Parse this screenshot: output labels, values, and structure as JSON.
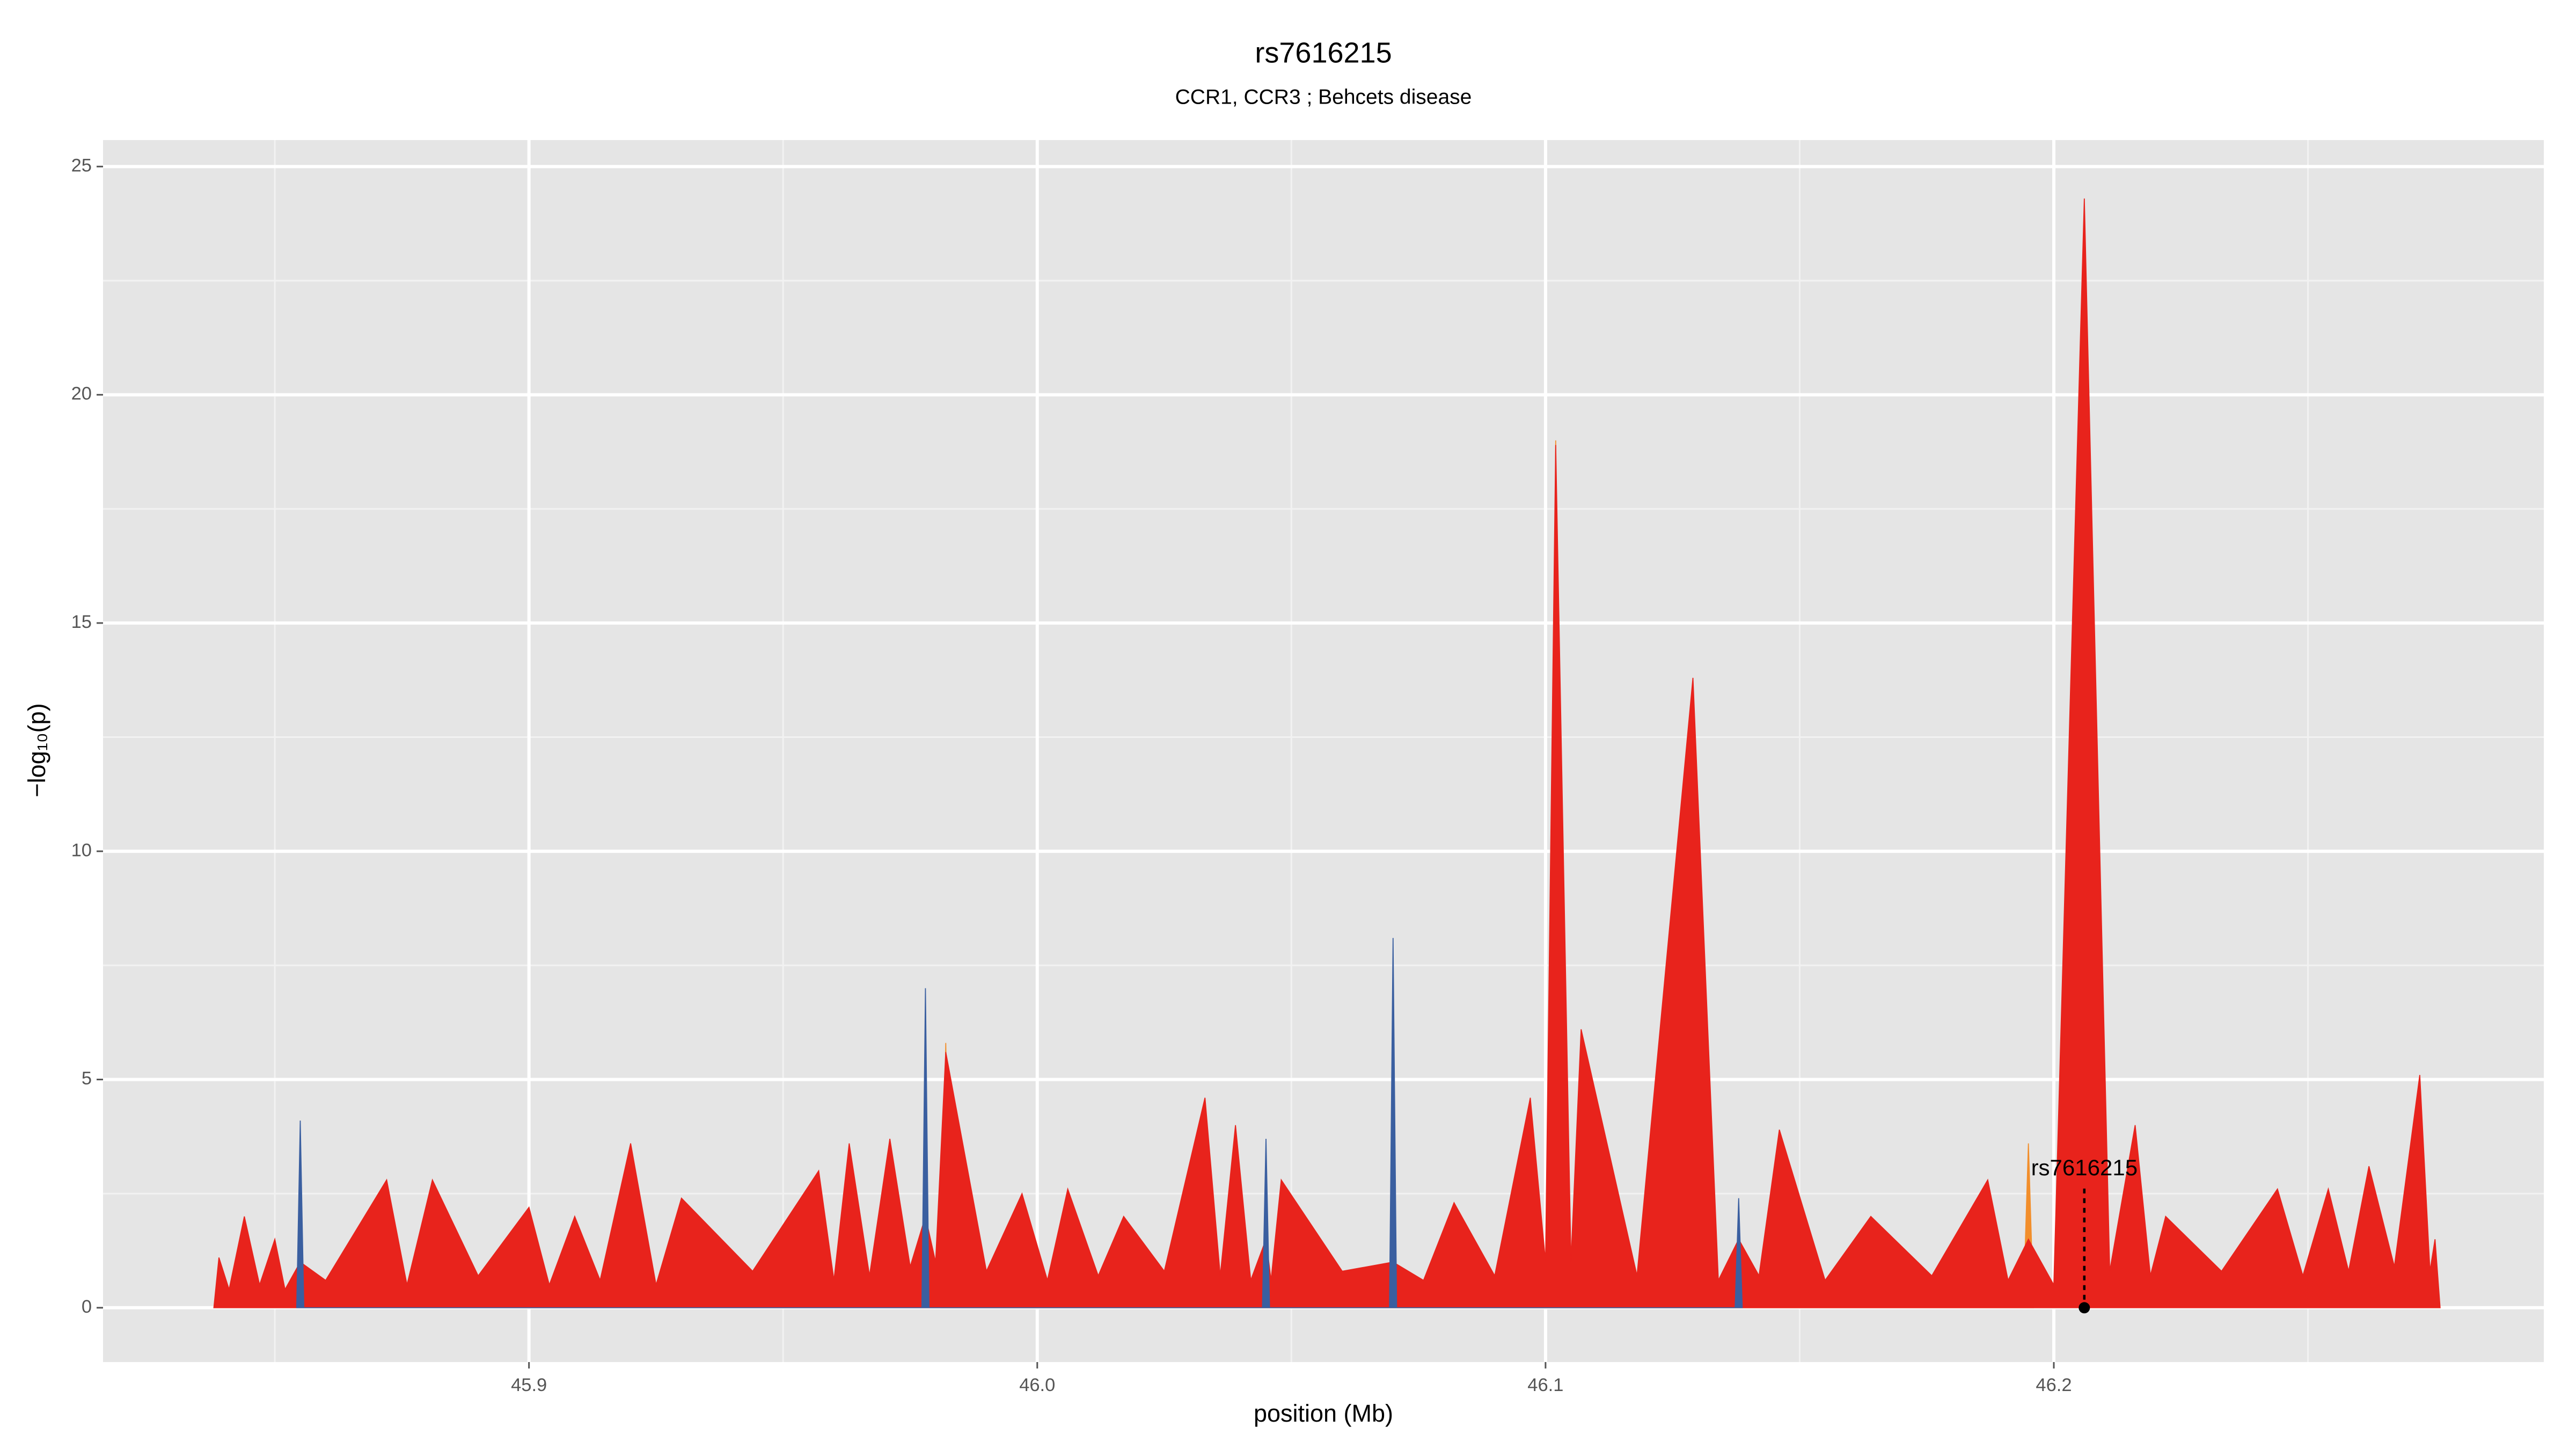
{
  "chart_data": {
    "type": "area",
    "title": "rs7616215",
    "subtitle": "CCR1, CCR3 ; Behcets disease",
    "x_label": "position (Mb)",
    "y_label": "−log₁₀(p)",
    "xlim": [
      45.8162,
      46.2964
    ],
    "ylim": [
      -1.19,
      25.58
    ],
    "xticks": [
      {
        "value": 45.9,
        "label": "45.9"
      },
      {
        "value": 46.0,
        "label": "46.0"
      },
      {
        "value": 46.1,
        "label": "46.1"
      },
      {
        "value": 46.2,
        "label": "46.2"
      }
    ],
    "yticks": [
      0,
      5,
      10,
      15,
      20,
      25
    ],
    "grid": true,
    "series": [
      {
        "color": "#f28e2b",
        "x": [
          45.981,
          45.982,
          45.983,
          46.101,
          46.102,
          46.103,
          46.194,
          46.195,
          46.196
        ],
        "values": [
          0,
          5.8,
          0,
          0,
          19.0,
          0,
          0,
          3.6,
          0
        ]
      },
      {
        "color": "#e8231c",
        "x": [
          45.838,
          45.839,
          45.841,
          45.844,
          45.847,
          45.85,
          45.852,
          45.855,
          45.86,
          45.872,
          45.876,
          45.881,
          45.89,
          45.9,
          45.904,
          45.909,
          45.914,
          45.92,
          45.925,
          45.93,
          45.944,
          45.957,
          45.96,
          45.963,
          45.967,
          45.971,
          45.975,
          45.978,
          45.98,
          45.982,
          45.99,
          45.997,
          46.002,
          46.006,
          46.012,
          46.017,
          46.025,
          46.033,
          46.036,
          46.039,
          46.042,
          46.045,
          46.046,
          46.048,
          46.06,
          46.07,
          46.076,
          46.082,
          46.09,
          46.097,
          46.1,
          46.102,
          46.105,
          46.107,
          46.118,
          46.129,
          46.134,
          46.138,
          46.142,
          46.146,
          46.155,
          46.164,
          46.176,
          46.187,
          46.191,
          46.195,
          46.2,
          46.206,
          46.211,
          46.216,
          46.219,
          46.222,
          46.233,
          46.244,
          46.249,
          46.254,
          46.258,
          46.262,
          46.267,
          46.272,
          46.274,
          46.275,
          46.276
        ],
        "values": [
          0,
          1.1,
          0.4,
          2.0,
          0.5,
          1.5,
          0.4,
          1.0,
          0.6,
          2.8,
          0.5,
          2.8,
          0.7,
          2.2,
          0.5,
          2.0,
          0.6,
          3.6,
          0.5,
          2.4,
          0.8,
          3.0,
          0.6,
          3.6,
          0.7,
          3.7,
          0.9,
          2.0,
          1.0,
          5.6,
          0.8,
          2.5,
          0.6,
          2.6,
          0.7,
          2.0,
          0.8,
          4.6,
          0.7,
          4.0,
          0.6,
          1.5,
          0.6,
          2.8,
          0.8,
          1.0,
          0.6,
          2.3,
          0.7,
          4.6,
          1.0,
          18.9,
          1.0,
          6.1,
          0.7,
          13.8,
          0.6,
          1.5,
          0.7,
          3.9,
          0.6,
          2.0,
          0.7,
          2.8,
          0.6,
          1.5,
          0.5,
          24.3,
          0.8,
          4.0,
          0.7,
          2.0,
          0.8,
          2.6,
          0.7,
          2.6,
          0.8,
          3.1,
          0.9,
          5.1,
          0.8,
          1.5,
          0
        ]
      },
      {
        "color": "#3a5fa0",
        "x": [
          45.8543,
          45.855,
          45.8557,
          45.9773,
          45.978,
          45.9787,
          46.0443,
          46.045,
          46.0457,
          46.0693,
          46.07,
          46.0707,
          46.1373,
          46.138,
          46.1387
        ],
        "values": [
          0,
          4.1,
          0,
          0,
          7.0,
          0,
          0,
          3.7,
          0,
          0,
          8.1,
          0,
          0,
          2.4,
          0
        ]
      }
    ],
    "annotation": {
      "text": "rs7616215",
      "x": 46.206,
      "y": 0
    }
  }
}
